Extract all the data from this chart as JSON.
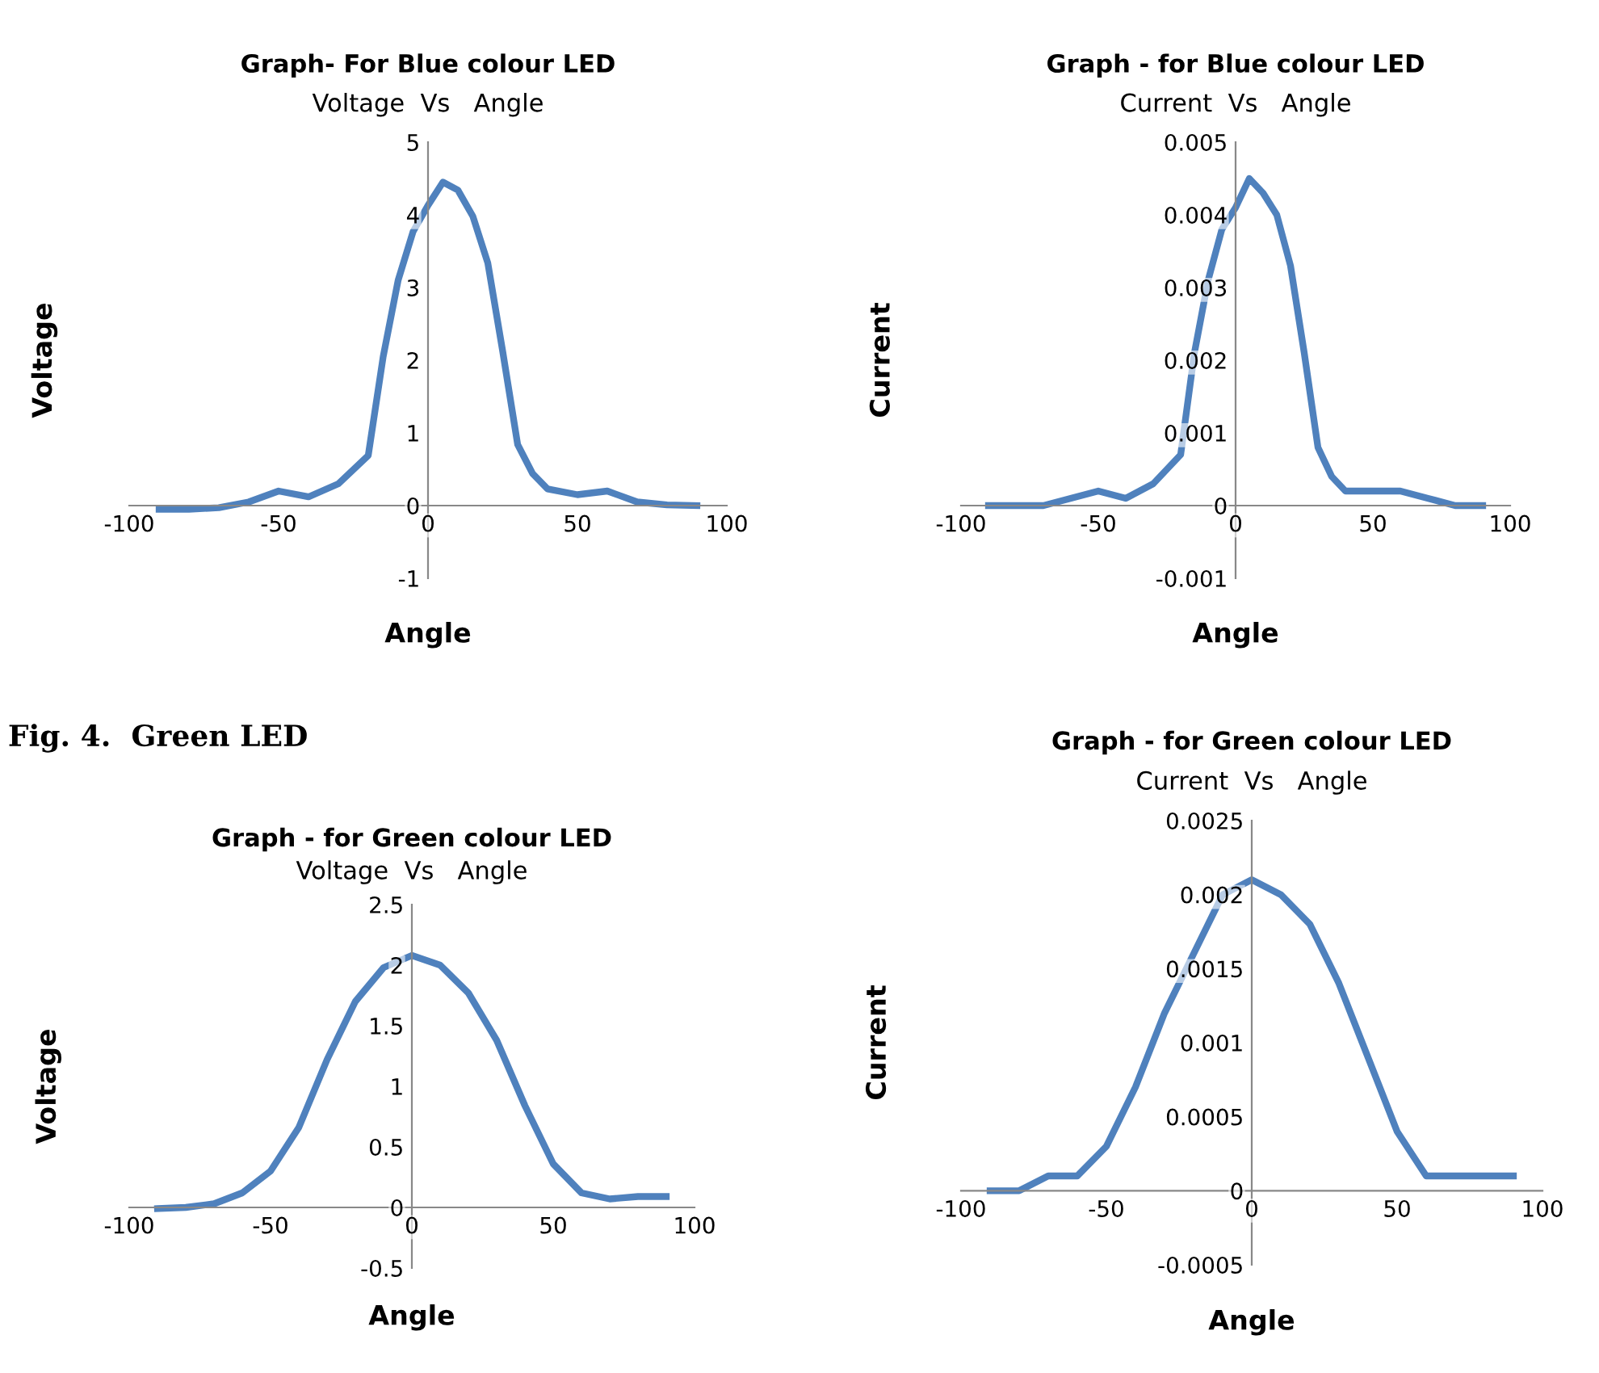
{
  "chart_data": [
    {
      "type": "line",
      "title": "Graph- For Blue colour LED",
      "subtitle": "Voltage  Vs   Angle",
      "xlabel": "Angle",
      "ylabel": "Voltage",
      "xlim": [
        -100,
        100
      ],
      "xticks": [
        -100,
        -50,
        0,
        50,
        100
      ],
      "ylim": [
        -1,
        5
      ],
      "yticks": [
        -1,
        0,
        1,
        2,
        3,
        4,
        5
      ],
      "grid": false,
      "marker": "none",
      "line_style": "solid",
      "x": [
        -90,
        -80,
        -70,
        -60,
        -50,
        -40,
        -30,
        -20,
        -15,
        -10,
        -5,
        0,
        5,
        10,
        15,
        20,
        25,
        30,
        35,
        40,
        50,
        60,
        70,
        80,
        90
      ],
      "series": [
        {
          "color": "#4f81bd",
          "values": [
            -0.05,
            -0.05,
            -0.03,
            0.05,
            0.2,
            0.12,
            0.3,
            0.69,
            2.05,
            3.1,
            3.77,
            4.13,
            4.45,
            4.34,
            3.98,
            3.34,
            2.12,
            0.84,
            0.44,
            0.23,
            0.15,
            0.2,
            0.05,
            0.01,
            0
          ]
        }
      ]
    },
    {
      "type": "line",
      "title": "Graph - for Blue colour LED",
      "subtitle": "Current  Vs   Angle",
      "xlabel": "Angle",
      "ylabel": "Current",
      "xlim": [
        -100,
        100
      ],
      "xticks": [
        -100,
        -50,
        0,
        50,
        100
      ],
      "ylim": [
        -0.001,
        0.005
      ],
      "yticks": [
        -0.001,
        0,
        0.001,
        0.002,
        0.003,
        0.004,
        0.005
      ],
      "grid": false,
      "marker": "none",
      "line_style": "solid",
      "x": [
        -90,
        -80,
        -70,
        -60,
        -50,
        -40,
        -30,
        -20,
        -15,
        -10,
        -5,
        0,
        5,
        10,
        15,
        20,
        25,
        30,
        35,
        40,
        50,
        60,
        70,
        80,
        90
      ],
      "series": [
        {
          "color": "#4f81bd",
          "values": [
            0,
            0,
            0,
            0.0001,
            0.0002,
            0.0001,
            0.0003,
            0.0007,
            0.0021,
            0.0031,
            0.0038,
            0.0041,
            0.0045,
            0.0043,
            0.004,
            0.0033,
            0.0021,
            0.0008,
            0.0004,
            0.0002,
            0.0002,
            0.0002,
            0.0001,
            0,
            0
          ]
        }
      ]
    },
    {
      "type": "line",
      "title": "Graph - for Green colour LED",
      "subtitle": "Voltage  Vs   Angle",
      "xlabel": "Angle",
      "ylabel": "Voltage",
      "annotations": [
        "Fig. 4.  Green LED"
      ],
      "xlim": [
        -100,
        100
      ],
      "xticks": [
        -100,
        -50,
        0,
        50,
        100
      ],
      "ylim": [
        -0.5,
        2.5
      ],
      "yticks": [
        -0.5,
        0,
        0.5,
        1,
        1.5,
        2,
        2.5
      ],
      "grid": false,
      "marker": "none",
      "line_style": "solid",
      "x": [
        -90,
        -80,
        -70,
        -60,
        -50,
        -40,
        -30,
        -20,
        -10,
        0,
        10,
        20,
        30,
        40,
        50,
        60,
        70,
        80,
        90
      ],
      "series": [
        {
          "color": "#4f81bd",
          "values": [
            -0.01,
            0,
            0.03,
            0.12,
            0.3,
            0.66,
            1.22,
            1.7,
            1.98,
            2.08,
            2.0,
            1.77,
            1.38,
            0.84,
            0.36,
            0.12,
            0.07,
            0.09,
            0.09
          ]
        }
      ]
    },
    {
      "type": "line",
      "title": "Graph - for Green colour LED",
      "subtitle": "Current  Vs   Angle",
      "xlabel": "Angle",
      "ylabel": "Current",
      "xlim": [
        -100,
        100
      ],
      "xticks": [
        -100,
        -50,
        0,
        50,
        100
      ],
      "ylim": [
        -0.0005,
        0.0025
      ],
      "yticks": [
        -0.0005,
        0,
        0.0005,
        0.001,
        0.0015,
        0.002,
        0.0025
      ],
      "grid": false,
      "marker": "none",
      "line_style": "solid",
      "x": [
        -90,
        -80,
        -70,
        -60,
        -50,
        -40,
        -30,
        -20,
        -10,
        0,
        10,
        20,
        30,
        40,
        50,
        60,
        70,
        80,
        90
      ],
      "series": [
        {
          "color": "#4f81bd",
          "values": [
            0,
            0,
            0.0001,
            0.0001,
            0.0003,
            0.0007,
            0.0012,
            0.0016,
            0.002,
            0.0021,
            0.002,
            0.0018,
            0.0014,
            0.0009,
            0.0004,
            0.0001,
            0.0001,
            0.0001,
            0.0001
          ]
        }
      ]
    }
  ]
}
